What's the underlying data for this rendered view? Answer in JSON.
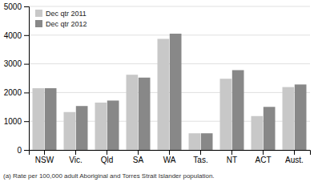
{
  "chart_data": {
    "type": "bar",
    "categories": [
      "NSW",
      "Vic.",
      "Qld",
      "SA",
      "WA",
      "Tas.",
      "NT",
      "ACT",
      "Aust."
    ],
    "series": [
      {
        "name": "Dec qtr 2011",
        "color": "#c8c8c8",
        "values": [
          2150,
          1320,
          1650,
          2620,
          3870,
          580,
          2480,
          1180,
          2190
        ]
      },
      {
        "name": "Dec qtr 2012",
        "color": "#888888",
        "values": [
          2150,
          1530,
          1720,
          2520,
          4050,
          580,
          2780,
          1500,
          2280
        ]
      }
    ],
    "ylim": [
      0,
      5000
    ],
    "yticks": [
      0,
      1000,
      2000,
      3000,
      4000,
      5000
    ],
    "grid": true,
    "legend": "upper left",
    "annotations": [
      "(a) Rate per 100,000 adult Aboriginal and Torres Strait Islander population."
    ]
  }
}
